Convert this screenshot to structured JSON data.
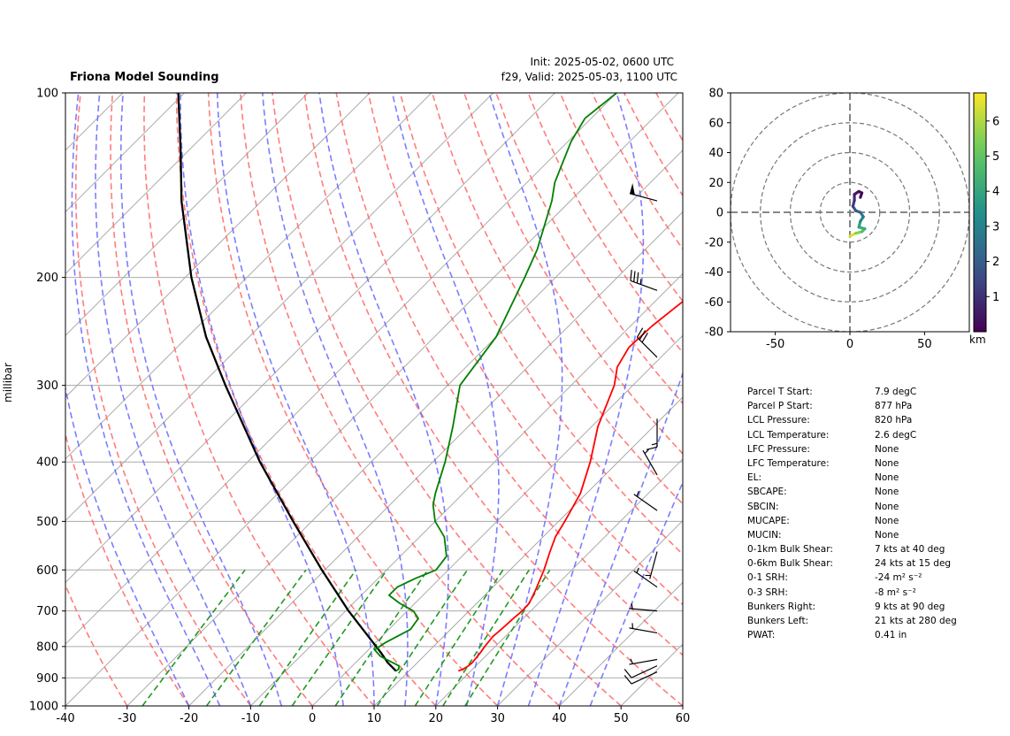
{
  "header": {
    "title": "Friona Model Sounding",
    "init": "Init: 2025-05-02, 0600 UTC",
    "valid": "f29, Valid: 2025-05-03, 1100 UTC"
  },
  "colors": {
    "temperature": "#ff0000",
    "dewpoint": "#008000",
    "parcel": "#000000",
    "dry_adiabats": "#ff6666",
    "moist_adiabats": "#6666ff",
    "mixing_ratio": "#229922",
    "isotherms": "#aaaaaa",
    "isobars": "#aaaaaa"
  },
  "chart_data": [
    {
      "type": "line",
      "name": "skew-t",
      "ylabel": "millibar",
      "y_scale": "log",
      "ylim": [
        1000,
        100
      ],
      "xlim": [
        -40,
        60
      ],
      "x_ticks": [
        "-40",
        "-30",
        "-20",
        "-10",
        "0",
        "10",
        "20",
        "30",
        "40",
        "50",
        "60"
      ],
      "y_ticks": [
        "100",
        "200",
        "300",
        "400",
        "500",
        "600",
        "700",
        "800",
        "900",
        "1000"
      ],
      "grid": true,
      "temperature": [
        [
          877,
          18.0
        ],
        [
          870,
          18.5
        ],
        [
          860,
          18.8
        ],
        [
          850,
          18.9
        ],
        [
          820,
          18.6
        ],
        [
          800,
          18.3
        ],
        [
          770,
          18.0
        ],
        [
          750,
          18.2
        ],
        [
          720,
          18.4
        ],
        [
          700,
          18.6
        ],
        [
          680,
          18.5
        ],
        [
          650,
          17.5
        ],
        [
          600,
          15.5
        ],
        [
          560,
          13.5
        ],
        [
          530,
          12.0
        ],
        [
          500,
          11.0
        ],
        [
          450,
          9.0
        ],
        [
          400,
          5.5
        ],
        [
          350,
          1.0
        ],
        [
          300,
          -3.0
        ],
        [
          280,
          -5.5
        ],
        [
          260,
          -6.8
        ],
        [
          240,
          -6.5
        ],
        [
          200,
          -4.5
        ],
        [
          180,
          -3.0
        ],
        [
          160,
          0.0
        ],
        [
          140,
          3.0
        ],
        [
          120,
          6.0
        ],
        [
          110,
          8.5
        ],
        [
          100,
          11.0
        ]
      ],
      "dewpoint": [
        [
          877,
          7.9
        ],
        [
          870,
          8.0
        ],
        [
          860,
          7.5
        ],
        [
          850,
          6.0
        ],
        [
          830,
          3.0
        ],
        [
          810,
          1.0
        ],
        [
          790,
          1.5
        ],
        [
          750,
          3.5
        ],
        [
          720,
          3.0
        ],
        [
          700,
          1.0
        ],
        [
          680,
          -2.5
        ],
        [
          660,
          -5.5
        ],
        [
          640,
          -5.5
        ],
        [
          620,
          -4.0
        ],
        [
          600,
          -2.0
        ],
        [
          570,
          -2.5
        ],
        [
          530,
          -6.0
        ],
        [
          500,
          -10.0
        ],
        [
          470,
          -13.0
        ],
        [
          450,
          -14.5
        ],
        [
          400,
          -18.0
        ],
        [
          350,
          -22.5
        ],
        [
          300,
          -28.0
        ],
        [
          250,
          -30.0
        ],
        [
          200,
          -35.0
        ],
        [
          180,
          -37.5
        ],
        [
          150,
          -43.0
        ],
        [
          140,
          -45.5
        ],
        [
          120,
          -49.5
        ],
        [
          110,
          -51.0
        ],
        [
          100,
          -50.0
        ]
      ],
      "parcel": [
        [
          877,
          7.9
        ],
        [
          850,
          5.2
        ],
        [
          820,
          2.6
        ],
        [
          700,
          -9.5
        ],
        [
          600,
          -20.5
        ],
        [
          500,
          -33.0
        ],
        [
          400,
          -48.0
        ],
        [
          300,
          -66.0
        ],
        [
          250,
          -77.0
        ],
        [
          200,
          -89.0
        ],
        [
          150,
          -103.0
        ],
        [
          125,
          -111.0
        ],
        [
          100,
          -121.0
        ]
      ],
      "wind_barbs": [
        {
          "p": 880,
          "speed_kt": 10,
          "dir_deg": 245
        },
        {
          "p": 860,
          "speed_kt": 10,
          "dir_deg": 245
        },
        {
          "p": 840,
          "speed_kt": 5,
          "dir_deg": 260
        },
        {
          "p": 760,
          "speed_kt": 5,
          "dir_deg": 280
        },
        {
          "p": 700,
          "speed_kt": 5,
          "dir_deg": 275
        },
        {
          "p": 640,
          "speed_kt": 5,
          "dir_deg": 305
        },
        {
          "p": 560,
          "speed_kt": 5,
          "dir_deg": 195
        },
        {
          "p": 480,
          "speed_kt": 5,
          "dir_deg": 305
        },
        {
          "p": 420,
          "speed_kt": 5,
          "dir_deg": 330
        },
        {
          "p": 340,
          "speed_kt": 15,
          "dir_deg": 180
        },
        {
          "p": 270,
          "speed_kt": 30,
          "dir_deg": 315
        },
        {
          "p": 210,
          "speed_kt": 35,
          "dir_deg": 290
        },
        {
          "p": 150,
          "speed_kt": 50,
          "dir_deg": 285
        }
      ]
    },
    {
      "type": "line",
      "name": "hodograph",
      "xlim": [
        -80,
        80
      ],
      "ylim": [
        -80,
        80
      ],
      "x_ticks": [
        "-50",
        "0",
        "50"
      ],
      "y_ticks": [
        "80",
        "60",
        "40",
        "20",
        "0",
        "-20",
        "-40",
        "-60",
        "-80"
      ],
      "range_rings": [
        20,
        40,
        60,
        80
      ],
      "colorbar_label": "km",
      "colorbar_ticks": [
        "1",
        "2",
        "3",
        "4",
        "5",
        "6"
      ],
      "colorbar_range": [
        0,
        6.8
      ],
      "points": [
        {
          "u": 0,
          "v": -16,
          "h": 6.8
        },
        {
          "u": 4,
          "v": -14,
          "h": 6.0
        },
        {
          "u": 8,
          "v": -13,
          "h": 5.0
        },
        {
          "u": 10,
          "v": -11,
          "h": 4.5
        },
        {
          "u": 6,
          "v": -10,
          "h": 4.0
        },
        {
          "u": 7,
          "v": -6,
          "h": 3.5
        },
        {
          "u": 9,
          "v": -3,
          "h": 3.0
        },
        {
          "u": 7,
          "v": 0,
          "h": 2.5
        },
        {
          "u": 4,
          "v": 1,
          "h": 2.0
        },
        {
          "u": 2,
          "v": 4,
          "h": 1.5
        },
        {
          "u": 3,
          "v": 8,
          "h": 1.0
        },
        {
          "u": 3,
          "v": 12,
          "h": 0.7
        },
        {
          "u": 6,
          "v": 14,
          "h": 0.4
        },
        {
          "u": 8,
          "v": 13,
          "h": 0.2
        },
        {
          "u": 7,
          "v": 10,
          "h": 0.05
        }
      ]
    }
  ],
  "parameters": [
    {
      "label": "Parcel T Start:",
      "value": "7.9 degC"
    },
    {
      "label": "Parcel P Start:",
      "value": "877 hPa"
    },
    {
      "label": "LCL Pressure:",
      "value": "820 hPa"
    },
    {
      "label": "LCL Temperature:",
      "value": "2.6 degC"
    },
    {
      "label": "LFC Pressure:",
      "value": "None"
    },
    {
      "label": "LFC Temperature:",
      "value": "None"
    },
    {
      "label": "EL:",
      "value": "None"
    },
    {
      "label": "SBCAPE:",
      "value": "None"
    },
    {
      "label": "SBCIN:",
      "value": "None"
    },
    {
      "label": "MUCAPE:",
      "value": "None"
    },
    {
      "label": "MUCIN:",
      "value": "None"
    },
    {
      "label": "0-1km Bulk Shear:",
      "value": "7 kts at 40 deg"
    },
    {
      "label": "0-6km Bulk Shear:",
      "value": "24 kts at 15 deg"
    },
    {
      "label": "0-1 SRH:",
      "value": "-24 m² s⁻²"
    },
    {
      "label": "0-3 SRH:",
      "value": "-8 m² s⁻²"
    },
    {
      "label": "Bunkers Right:",
      "value": "9 kts at 90 deg"
    },
    {
      "label": "Bunkers Left:",
      "value": "21 kts at 280 deg"
    },
    {
      "label": "PWAT:",
      "value": "0.41 in"
    }
  ]
}
